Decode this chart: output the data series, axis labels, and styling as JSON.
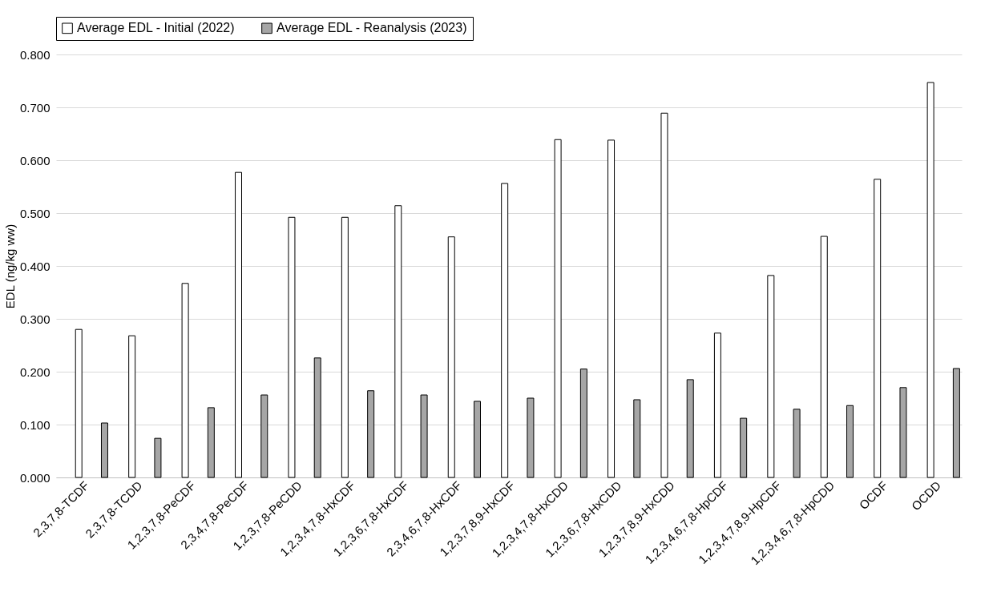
{
  "chart_data": {
    "type": "bar",
    "ylabel": "EDL (ng/kg ww)",
    "categories": [
      "2,3,7,8-TCDF",
      "2,3,7,8-TCDD",
      "1,2,3,7,8-PeCDF",
      "2,3,4,7,8-PeCDF",
      "1,2,3,7,8-PeCDD",
      "1,2,3,4,7,8-HxCDF",
      "1,2,3,6,7,8-HxCDF",
      "2,3,4,6,7,8-HxCDF",
      "1,2,3,7,8,9-HxCDF",
      "1,2,3,4,7,8-HxCDD",
      "1,2,3,6,7,8-HxCDD",
      "1,2,3,7,8,9-HxCDD",
      "1,2,3,4,6,7,8-HpCDF",
      "1,2,3,4,7,8,9-HpCDF",
      "1,2,3,4,6,7,8-HpCDD",
      "OCDF",
      "OCDD"
    ],
    "series": [
      {
        "name": "Average EDL - Initial (2022)",
        "color": "#ffffff",
        "values": [
          0.28,
          0.268,
          0.367,
          0.577,
          0.492,
          0.492,
          0.514,
          0.455,
          0.556,
          0.639,
          0.638,
          0.689,
          0.273,
          0.382,
          0.456,
          0.564,
          0.747
        ]
      },
      {
        "name": "Average EDL - Reanalysis (2023)",
        "color": "#a6a6a6",
        "values": [
          0.103,
          0.074,
          0.132,
          0.156,
          0.226,
          0.164,
          0.156,
          0.144,
          0.15,
          0.205,
          0.147,
          0.185,
          0.112,
          0.129,
          0.136,
          0.17,
          0.206
        ]
      }
    ],
    "ylim": [
      0,
      0.8
    ],
    "yticks": [
      {
        "value": 0,
        "label": "0.000"
      },
      {
        "value": 0.1,
        "label": "0.100"
      },
      {
        "value": 0.2,
        "label": "0.200"
      },
      {
        "value": 0.3,
        "label": "0.300"
      },
      {
        "value": 0.4,
        "label": "0.400"
      },
      {
        "value": 0.5,
        "label": "0.500"
      },
      {
        "value": 0.6,
        "label": "0.600"
      },
      {
        "value": 0.7,
        "label": "0.700"
      },
      {
        "value": 0.8,
        "label": "0.800"
      }
    ],
    "grid": "y",
    "legend": "top"
  }
}
